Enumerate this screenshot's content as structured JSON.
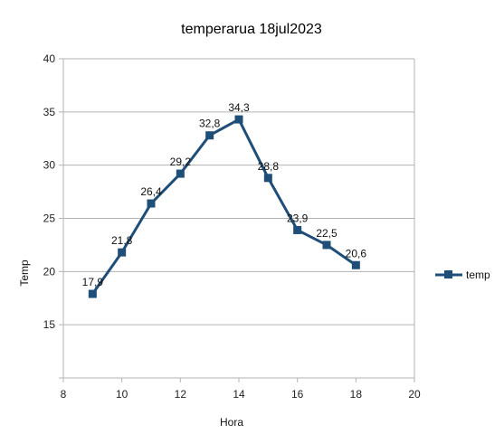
{
  "chart_data": {
    "type": "line",
    "title": "temperarua 18jul2023",
    "xlabel": "Hora",
    "ylabel": "Temp",
    "xlim": [
      8,
      20
    ],
    "ylim": [
      10,
      40
    ],
    "x_ticks": [
      8,
      10,
      12,
      14,
      16,
      18,
      20
    ],
    "y_ticks": [
      15,
      20,
      25,
      30,
      35,
      40
    ],
    "grid": "horizontal",
    "legend_position": "right",
    "series": [
      {
        "name": "temp",
        "color": "#1f4e79",
        "marker": "square",
        "x": [
          9,
          10,
          11,
          12,
          13,
          14,
          15,
          16,
          17,
          18
        ],
        "y": [
          17.9,
          21.8,
          26.4,
          29.2,
          32.8,
          34.3,
          28.8,
          23.9,
          22.5,
          20.6
        ],
        "labels": [
          "17,9",
          "21,8",
          "26,4",
          "29,2",
          "32,8",
          "34,3",
          "28,8",
          "23,9",
          "22,5",
          "20,6"
        ]
      }
    ]
  }
}
